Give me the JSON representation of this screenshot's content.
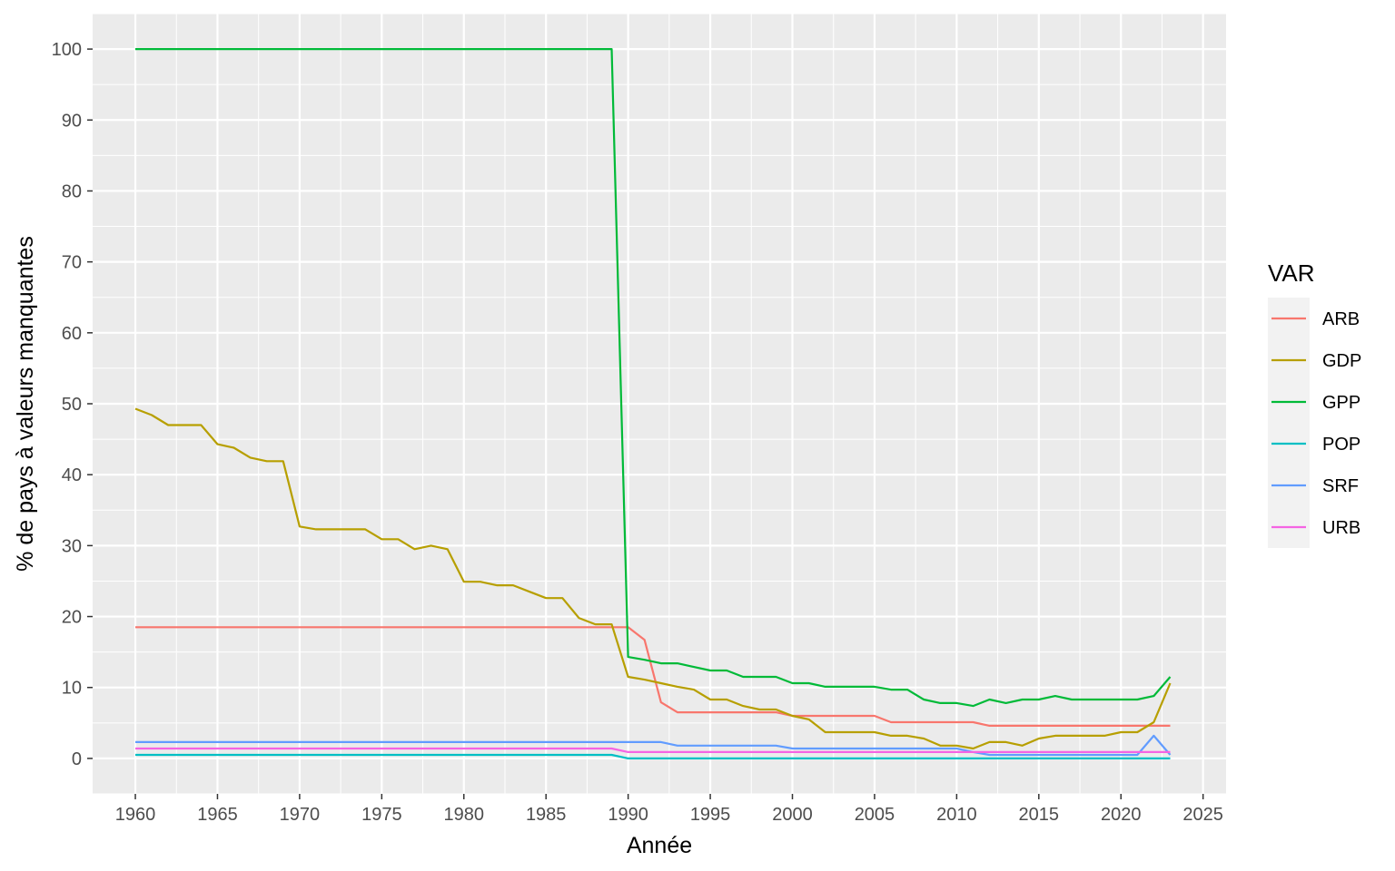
{
  "chart_data": {
    "type": "line",
    "xlabel": "Année",
    "ylabel": "% de pays à valeurs manquantes",
    "xlim": [
      1957.4,
      2026.4
    ],
    "ylim": [
      -5,
      105
    ],
    "x_ticks": [
      1960,
      1965,
      1970,
      1975,
      1980,
      1985,
      1990,
      1995,
      2000,
      2005,
      2010,
      2015,
      2020,
      2025
    ],
    "y_ticks": [
      0,
      10,
      20,
      30,
      40,
      50,
      60,
      70,
      80,
      90,
      100
    ],
    "x_tick_labels": [
      "1960",
      "1965",
      "1970",
      "1975",
      "1980",
      "1985",
      "1990",
      "1995",
      "2000",
      "2005",
      "2010",
      "2015",
      "2020",
      "2025"
    ],
    "y_tick_labels": [
      "0",
      "10",
      "20",
      "30",
      "40",
      "50",
      "60",
      "70",
      "80",
      "90",
      "100"
    ],
    "grid": true,
    "legend": {
      "title": "VAR",
      "position": "right"
    },
    "series": [
      {
        "name": "ARB",
        "color": "#F8766D",
        "x": [
          1960,
          1989,
          1990,
          1991,
          1992,
          1993,
          1999,
          2000,
          2005,
          2006,
          2011,
          2012,
          2023
        ],
        "y": [
          18.5,
          18.5,
          18.5,
          16.7,
          7.9,
          6.5,
          6.5,
          6.0,
          6.0,
          5.1,
          5.1,
          4.6,
          4.6
        ]
      },
      {
        "name": "GDP",
        "color": "#B79F00",
        "x": [
          1960,
          1961,
          1962,
          1963,
          1964,
          1965,
          1966,
          1967,
          1968,
          1969,
          1970,
          1971,
          1972,
          1973,
          1974,
          1975,
          1976,
          1977,
          1978,
          1979,
          1980,
          1981,
          1982,
          1983,
          1984,
          1985,
          1986,
          1987,
          1988,
          1989,
          1990,
          1991,
          1992,
          1993,
          1994,
          1995,
          1996,
          1997,
          1998,
          1999,
          2000,
          2001,
          2002,
          2003,
          2004,
          2005,
          2006,
          2007,
          2008,
          2009,
          2010,
          2011,
          2012,
          2013,
          2014,
          2015,
          2016,
          2017,
          2018,
          2019,
          2020,
          2021,
          2022,
          2023
        ],
        "y": [
          49.3,
          48.4,
          47.0,
          47.0,
          47.0,
          44.3,
          43.8,
          42.4,
          41.9,
          41.9,
          32.7,
          32.3,
          32.3,
          32.3,
          32.3,
          30.9,
          30.9,
          29.5,
          30.0,
          29.5,
          24.9,
          24.9,
          24.4,
          24.4,
          23.5,
          22.6,
          22.6,
          19.8,
          18.9,
          18.9,
          11.5,
          11.1,
          10.6,
          10.1,
          9.7,
          8.3,
          8.3,
          7.4,
          6.9,
          6.9,
          6.0,
          5.5,
          3.7,
          3.7,
          3.7,
          3.7,
          3.2,
          3.2,
          2.8,
          1.8,
          1.8,
          1.4,
          2.3,
          2.3,
          1.8,
          2.8,
          3.2,
          3.2,
          3.2,
          3.2,
          3.7,
          3.7,
          5.1,
          10.6
        ]
      },
      {
        "name": "GPP",
        "color": "#00BA38",
        "x": [
          1960,
          1989,
          1990,
          1991,
          1992,
          1993,
          1994,
          1995,
          1996,
          1997,
          1998,
          1999,
          2000,
          2001,
          2002,
          2003,
          2004,
          2005,
          2006,
          2007,
          2008,
          2009,
          2010,
          2011,
          2012,
          2013,
          2014,
          2015,
          2016,
          2017,
          2018,
          2019,
          2020,
          2021,
          2022,
          2023
        ],
        "y": [
          100,
          100,
          14.3,
          13.9,
          13.4,
          13.4,
          12.9,
          12.4,
          12.4,
          11.5,
          11.5,
          11.5,
          10.6,
          10.6,
          10.1,
          10.1,
          10.1,
          10.1,
          9.7,
          9.7,
          8.3,
          7.8,
          7.8,
          7.4,
          8.3,
          7.8,
          8.3,
          8.3,
          8.8,
          8.3,
          8.3,
          8.3,
          8.3,
          8.3,
          8.8,
          11.5
        ]
      },
      {
        "name": "POP",
        "color": "#00BFC4",
        "x": [
          1960,
          1989,
          1990,
          2023
        ],
        "y": [
          0.5,
          0.5,
          0.0,
          0.0
        ]
      },
      {
        "name": "SRF",
        "color": "#619CFF",
        "x": [
          1960,
          1992,
          1993,
          1999,
          2000,
          2010,
          2011,
          2012,
          2021,
          2022,
          2023
        ],
        "y": [
          2.3,
          2.3,
          1.8,
          1.8,
          1.4,
          1.4,
          0.9,
          0.5,
          0.5,
          3.2,
          0.5
        ]
      },
      {
        "name": "URB",
        "color": "#F564E3",
        "x": [
          1960,
          1989,
          1990,
          2023
        ],
        "y": [
          1.4,
          1.4,
          0.9,
          0.9
        ]
      }
    ]
  }
}
